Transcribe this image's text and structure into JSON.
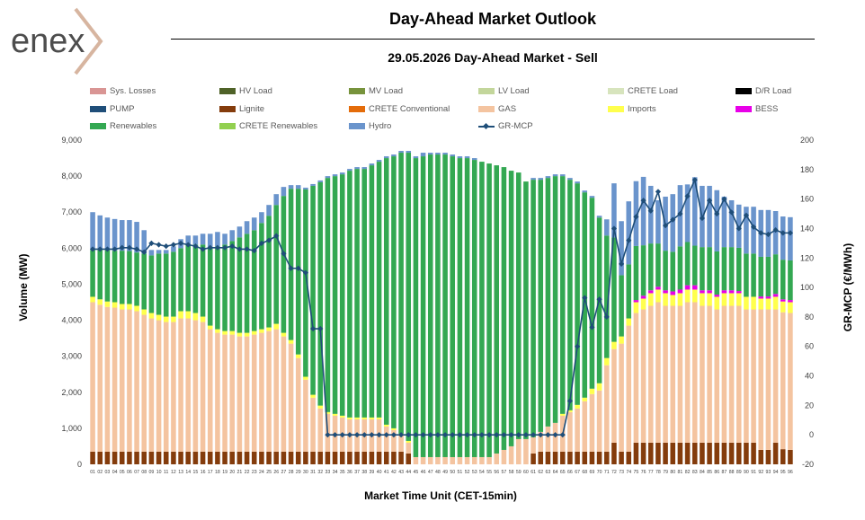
{
  "header": {
    "logo_text": "enex",
    "title": "Day-Ahead Market Outlook",
    "subtitle": "29.05.2026  Day-Ahead Market - Sell"
  },
  "legend": [
    {
      "label": "Sys. Losses",
      "color": "#d99594",
      "kind": "bar"
    },
    {
      "label": "HV Load",
      "color": "#4f6228",
      "kind": "bar"
    },
    {
      "label": "MV Load",
      "color": "#77933c",
      "kind": "bar"
    },
    {
      "label": "LV Load",
      "color": "#c3d69b",
      "kind": "bar"
    },
    {
      "label": "CRETE Load",
      "color": "#d7e4bd",
      "kind": "bar"
    },
    {
      "label": "D/R Load",
      "color": "#000000",
      "kind": "bar"
    },
    {
      "label": "PUMP",
      "color": "#1f4e79",
      "kind": "bar"
    },
    {
      "label": "Lignite",
      "color": "#843c0c",
      "kind": "bar"
    },
    {
      "label": "CRETE Conventional",
      "color": "#e46c0a",
      "kind": "bar"
    },
    {
      "label": "GAS",
      "color": "#f4c4a0",
      "kind": "bar"
    },
    {
      "label": "Imports",
      "color": "#ffff4d",
      "kind": "bar"
    },
    {
      "label": "BESS",
      "color": "#e800e8",
      "kind": "bar"
    },
    {
      "label": "Renewables",
      "color": "#33a852",
      "kind": "bar"
    },
    {
      "label": "CRETE Renewables",
      "color": "#92d050",
      "kind": "bar"
    },
    {
      "label": "Hydro",
      "color": "#6a94cc",
      "kind": "bar"
    },
    {
      "label": "GR-MCP",
      "color": "#1f4e79",
      "kind": "line"
    }
  ],
  "axes": {
    "y_left_title": "Volume (MW)",
    "y_right_title": "GR-MCP (€/MWh)",
    "x_title": "Market Time Unit (CET-15min)"
  },
  "chart_data": {
    "type": "bar",
    "stacked": true,
    "ylim": [
      0,
      9000
    ],
    "y2lim": [
      -20,
      200
    ],
    "y_ticks": [
      "0",
      "1,000",
      "2,000",
      "3,000",
      "4,000",
      "5,000",
      "6,000",
      "7,000",
      "8,000",
      "9,000"
    ],
    "y2_ticks": [
      "-20",
      "0",
      "20",
      "40",
      "60",
      "80",
      "100",
      "120",
      "140",
      "160",
      "180",
      "200"
    ],
    "categories": [
      "01",
      "02",
      "03",
      "04",
      "05",
      "06",
      "07",
      "08",
      "09",
      "10",
      "11",
      "12",
      "13",
      "14",
      "15",
      "16",
      "17",
      "18",
      "19",
      "20",
      "21",
      "22",
      "23",
      "24",
      "25",
      "26",
      "27",
      "28",
      "29",
      "30",
      "31",
      "32",
      "33",
      "34",
      "35",
      "36",
      "37",
      "38",
      "39",
      "40",
      "41",
      "42",
      "43",
      "44",
      "45",
      "46",
      "47",
      "48",
      "49",
      "50",
      "51",
      "52",
      "53",
      "54",
      "55",
      "56",
      "57",
      "58",
      "59",
      "60",
      "61",
      "62",
      "63",
      "64",
      "65",
      "66",
      "67",
      "68",
      "69",
      "70",
      "71",
      "72",
      "73",
      "74",
      "75",
      "76",
      "77",
      "78",
      "79",
      "80",
      "81",
      "82",
      "83",
      "84",
      "85",
      "86",
      "87",
      "88",
      "89",
      "90",
      "91",
      "92",
      "93",
      "94",
      "95",
      "96"
    ],
    "series": [
      {
        "name": "Lignite",
        "color": "#843c0c",
        "values": [
          350,
          350,
          350,
          350,
          350,
          350,
          350,
          350,
          350,
          350,
          350,
          350,
          350,
          350,
          350,
          350,
          350,
          350,
          350,
          350,
          350,
          350,
          350,
          350,
          350,
          350,
          350,
          350,
          350,
          350,
          350,
          350,
          350,
          350,
          350,
          350,
          350,
          350,
          350,
          350,
          350,
          350,
          350,
          300,
          0,
          0,
          0,
          0,
          0,
          0,
          0,
          0,
          0,
          0,
          0,
          0,
          0,
          0,
          0,
          0,
          300,
          350,
          350,
          350,
          350,
          350,
          350,
          350,
          350,
          350,
          350,
          600,
          350,
          350,
          600,
          600,
          600,
          600,
          600,
          600,
          600,
          600,
          600,
          600,
          600,
          600,
          600,
          600,
          600,
          600,
          600,
          400,
          400,
          600,
          420,
          400
        ]
      },
      {
        "name": "GAS",
        "color": "#f4c4a0",
        "values": [
          4150,
          4080,
          4020,
          4000,
          3950,
          3950,
          3900,
          3800,
          3700,
          3650,
          3600,
          3600,
          3700,
          3700,
          3650,
          3600,
          3400,
          3300,
          3250,
          3250,
          3200,
          3200,
          3250,
          3300,
          3350,
          3400,
          3200,
          3000,
          2600,
          2000,
          1500,
          1200,
          1050,
          1000,
          950,
          900,
          900,
          900,
          900,
          900,
          700,
          600,
          450,
          300,
          200,
          200,
          200,
          200,
          200,
          200,
          200,
          200,
          200,
          200,
          200,
          300,
          400,
          500,
          700,
          700,
          450,
          550,
          700,
          800,
          1000,
          1100,
          1200,
          1400,
          1600,
          1700,
          2400,
          2600,
          3000,
          3500,
          3600,
          3700,
          3800,
          3900,
          3800,
          3800,
          3800,
          3900,
          3900,
          3800,
          3800,
          3700,
          3800,
          3800,
          3800,
          3700,
          3700,
          3900,
          3900,
          3700,
          3800,
          3800
        ]
      },
      {
        "name": "Imports",
        "color": "#ffff4d",
        "values": [
          150,
          150,
          150,
          150,
          150,
          150,
          150,
          150,
          150,
          150,
          150,
          150,
          200,
          200,
          200,
          150,
          100,
          100,
          100,
          100,
          100,
          100,
          100,
          100,
          100,
          150,
          100,
          100,
          100,
          80,
          80,
          80,
          50,
          50,
          50,
          50,
          50,
          50,
          50,
          50,
          50,
          50,
          50,
          50,
          0,
          0,
          0,
          0,
          0,
          0,
          0,
          0,
          0,
          0,
          0,
          0,
          0,
          0,
          0,
          0,
          0,
          0,
          0,
          0,
          50,
          50,
          100,
          100,
          150,
          200,
          200,
          200,
          200,
          200,
          300,
          300,
          350,
          350,
          350,
          300,
          350,
          350,
          350,
          350,
          350,
          350,
          350,
          350,
          350,
          350,
          350,
          300,
          300,
          350,
          300,
          300
        ]
      },
      {
        "name": "BESS",
        "color": "#e800e8",
        "values": [
          0,
          0,
          0,
          0,
          0,
          0,
          0,
          0,
          0,
          0,
          0,
          0,
          0,
          0,
          0,
          0,
          0,
          0,
          0,
          0,
          0,
          0,
          0,
          0,
          0,
          0,
          0,
          0,
          0,
          0,
          0,
          0,
          0,
          0,
          0,
          0,
          0,
          0,
          0,
          0,
          0,
          0,
          0,
          0,
          0,
          0,
          0,
          0,
          0,
          0,
          0,
          0,
          0,
          0,
          0,
          0,
          0,
          0,
          0,
          0,
          0,
          0,
          0,
          0,
          0,
          0,
          0,
          0,
          0,
          0,
          0,
          0,
          0,
          0,
          60,
          80,
          80,
          80,
          80,
          100,
          100,
          120,
          120,
          80,
          80,
          60,
          80,
          80,
          60,
          0,
          0,
          60,
          60,
          80,
          60,
          60
        ]
      },
      {
        "name": "Renewables",
        "color": "#33a852",
        "values": [
          1300,
          1380,
          1430,
          1430,
          1480,
          1470,
          1480,
          1550,
          1600,
          1700,
          1750,
          1800,
          1750,
          1850,
          1900,
          2000,
          2150,
          2300,
          2400,
          2500,
          2650,
          2750,
          2800,
          2950,
          3100,
          3300,
          3800,
          4200,
          4600,
          5200,
          5800,
          6200,
          6500,
          6600,
          6700,
          6850,
          6900,
          6900,
          7000,
          7100,
          7400,
          7550,
          7800,
          8000,
          8300,
          8350,
          8400,
          8400,
          8400,
          8350,
          8300,
          8300,
          8250,
          8200,
          8150,
          8000,
          7850,
          7650,
          7400,
          7150,
          7150,
          7000,
          6900,
          6850,
          6600,
          6400,
          6150,
          5700,
          5300,
          4600,
          3400,
          2900,
          1700,
          1500,
          1500,
          1400,
          1300,
          1200,
          1100,
          1100,
          1200,
          1200,
          1100,
          1200,
          1200,
          1200,
          1200,
          1200,
          1200,
          1200,
          1200,
          1100,
          1100,
          1100,
          1100,
          1100
        ]
      },
      {
        "name": "Hydro",
        "color": "#6a94cc",
        "values": [
          1050,
          950,
          900,
          880,
          850,
          860,
          850,
          650,
          150,
          100,
          100,
          150,
          250,
          250,
          250,
          300,
          400,
          400,
          300,
          300,
          300,
          350,
          350,
          300,
          300,
          300,
          250,
          100,
          100,
          50,
          50,
          50,
          50,
          50,
          50,
          50,
          50,
          50,
          50,
          50,
          50,
          50,
          50,
          50,
          50,
          100,
          50,
          50,
          50,
          50,
          50,
          50,
          50,
          0,
          0,
          0,
          0,
          0,
          0,
          0,
          50,
          50,
          50,
          50,
          50,
          50,
          50,
          50,
          50,
          50,
          450,
          1500,
          1500,
          1750,
          1800,
          1900,
          1600,
          1200,
          1500,
          1600,
          1700,
          1600,
          1900,
          1700,
          1700,
          1700,
          1400,
          1300,
          1200,
          1300,
          1300,
          1300,
          1300,
          1200,
          1200,
          1200
        ]
      }
    ],
    "line": {
      "name": "GR-MCP",
      "color": "#1f4e79",
      "axis": "right",
      "values": [
        126,
        126,
        126,
        126,
        127,
        127,
        126,
        124,
        130,
        129,
        128,
        129,
        130,
        129,
        128,
        126,
        127,
        127,
        127,
        128,
        126,
        126,
        125,
        130,
        132,
        135,
        123,
        113,
        113,
        110,
        72,
        72,
        0,
        0,
        0,
        0,
        0,
        0,
        0,
        0,
        0,
        0,
        0,
        0,
        0,
        0,
        0,
        0,
        0,
        0,
        0,
        0,
        0,
        0,
        0,
        0,
        0,
        0,
        0,
        0,
        0,
        0,
        0,
        0,
        0,
        23,
        60,
        93,
        73,
        92,
        80,
        140,
        116,
        132,
        148,
        159,
        152,
        165,
        142,
        146,
        150,
        162,
        173,
        147,
        159,
        150,
        160,
        151,
        140,
        149,
        141,
        137,
        136,
        139,
        137,
        137
      ]
    }
  }
}
